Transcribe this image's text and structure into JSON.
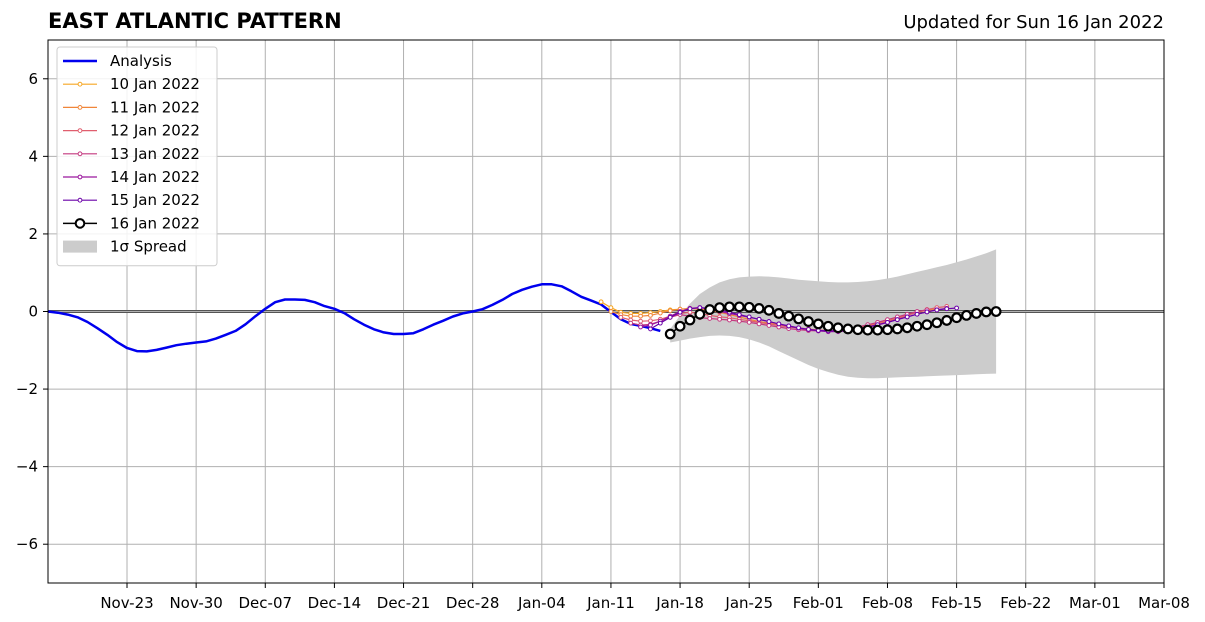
{
  "chart_data": {
    "type": "line",
    "title": "EAST ATLANTIC PATTERN",
    "subtitle": "Updated for Sun 16 Jan 2022",
    "xlabel": "",
    "ylabel": "",
    "xlim": [
      "2021-11-15",
      "2022-03-08"
    ],
    "ylim": [
      -7,
      7
    ],
    "grid": true,
    "legend_position": "top-left",
    "x_ticks": [
      "2021-11-23",
      "2021-11-30",
      "2021-12-07",
      "2021-12-14",
      "2021-12-21",
      "2021-12-28",
      "2022-01-04",
      "2022-01-11",
      "2022-01-18",
      "2022-01-25",
      "2022-02-01",
      "2022-02-08",
      "2022-02-15",
      "2022-02-22",
      "2022-03-01",
      "2022-03-08"
    ],
    "x_tick_labels": [
      "Nov-23",
      "Nov-30",
      "Dec-07",
      "Dec-14",
      "Dec-21",
      "Dec-28",
      "Jan-04",
      "Jan-11",
      "Jan-18",
      "Jan-25",
      "Feb-01",
      "Feb-08",
      "Feb-15",
      "Feb-22",
      "Mar-01",
      "Mar-08"
    ],
    "y_ticks": [
      -6,
      -4,
      -2,
      0,
      2,
      4,
      6
    ],
    "y_tick_labels": [
      "−6",
      "−4",
      "−2",
      "0",
      "2",
      "4",
      "6"
    ],
    "analysis": {
      "name": "Analysis",
      "color": "#0000ee",
      "points": [
        [
          "2021-11-15",
          0.0
        ],
        [
          "2021-11-16",
          -0.03
        ],
        [
          "2021-11-17",
          -0.08
        ],
        [
          "2021-11-18",
          -0.15
        ],
        [
          "2021-11-19",
          -0.27
        ],
        [
          "2021-11-20",
          -0.43
        ],
        [
          "2021-11-21",
          -0.6
        ],
        [
          "2021-11-22",
          -0.79
        ],
        [
          "2021-11-23",
          -0.94
        ],
        [
          "2021-11-24",
          -1.02
        ],
        [
          "2021-11-25",
          -1.03
        ],
        [
          "2021-11-26",
          -0.99
        ],
        [
          "2021-11-27",
          -0.93
        ],
        [
          "2021-11-28",
          -0.87
        ],
        [
          "2021-11-29",
          -0.83
        ],
        [
          "2021-11-30",
          -0.8
        ],
        [
          "2021-12-01",
          -0.77
        ],
        [
          "2021-12-02",
          -0.7
        ],
        [
          "2021-12-03",
          -0.6
        ],
        [
          "2021-12-04",
          -0.5
        ],
        [
          "2021-12-05",
          -0.33
        ],
        [
          "2021-12-06",
          -0.12
        ],
        [
          "2021-12-07",
          0.07
        ],
        [
          "2021-12-08",
          0.24
        ],
        [
          "2021-12-09",
          0.31
        ],
        [
          "2021-12-10",
          0.31
        ],
        [
          "2021-12-11",
          0.3
        ],
        [
          "2021-12-12",
          0.24
        ],
        [
          "2021-12-13",
          0.14
        ],
        [
          "2021-12-14",
          0.07
        ],
        [
          "2021-12-15",
          -0.04
        ],
        [
          "2021-12-16",
          -0.2
        ],
        [
          "2021-12-17",
          -0.34
        ],
        [
          "2021-12-18",
          -0.46
        ],
        [
          "2021-12-19",
          -0.54
        ],
        [
          "2021-12-20",
          -0.58
        ],
        [
          "2021-12-21",
          -0.58
        ],
        [
          "2021-12-22",
          -0.56
        ],
        [
          "2021-12-23",
          -0.46
        ],
        [
          "2021-12-24",
          -0.34
        ],
        [
          "2021-12-25",
          -0.24
        ],
        [
          "2021-12-26",
          -0.13
        ],
        [
          "2021-12-27",
          -0.05
        ],
        [
          "2021-12-28",
          0.0
        ],
        [
          "2021-12-29",
          0.06
        ],
        [
          "2021-12-30",
          0.17
        ],
        [
          "2021-12-31",
          0.3
        ],
        [
          "2022-01-01",
          0.45
        ],
        [
          "2022-01-02",
          0.56
        ],
        [
          "2022-01-03",
          0.64
        ],
        [
          "2022-01-04",
          0.7
        ],
        [
          "2022-01-05",
          0.7
        ],
        [
          "2022-01-06",
          0.65
        ],
        [
          "2022-01-07",
          0.52
        ],
        [
          "2022-01-08",
          0.38
        ],
        [
          "2022-01-09",
          0.28
        ],
        [
          "2022-01-10",
          0.18
        ],
        [
          "2022-01-11",
          -0.01
        ],
        [
          "2022-01-12",
          -0.2
        ],
        [
          "2022-01-13",
          -0.32
        ],
        [
          "2022-01-14",
          -0.37
        ],
        [
          "2022-01-15",
          -0.43
        ],
        [
          "2022-01-16",
          -0.5
        ]
      ]
    },
    "forecast_series": [
      {
        "name": "10 Jan 2022",
        "color": "#f6a623",
        "start": "2022-01-10",
        "values": [
          0.25,
          0.1,
          -0.02,
          -0.05,
          -0.05,
          -0.03,
          0.0,
          0.04,
          0.06
        ]
      },
      {
        "name": "11 Jan 2022",
        "color": "#f0863a",
        "start": "2022-01-11",
        "values": [
          0.0,
          -0.08,
          -0.12,
          -0.12,
          -0.1,
          -0.04,
          0.02,
          0.06,
          0.08,
          0.06,
          0.03,
          -0.02,
          -0.08,
          -0.14,
          -0.2,
          -0.26,
          -0.3,
          -0.34,
          -0.38,
          -0.42,
          -0.45,
          -0.48,
          -0.5,
          -0.5,
          -0.48,
          -0.43,
          -0.36,
          -0.29,
          -0.22,
          -0.15,
          -0.08,
          -0.02,
          0.03,
          0.06
        ]
      },
      {
        "name": "12 Jan 2022",
        "color": "#e05e6e",
        "start": "2022-01-12",
        "values": [
          -0.15,
          -0.22,
          -0.25,
          -0.24,
          -0.2,
          -0.12,
          -0.05,
          -0.02,
          -0.05,
          -0.1,
          -0.14,
          -0.16,
          -0.2,
          -0.24,
          -0.28,
          -0.32,
          -0.36,
          -0.4,
          -0.43,
          -0.46,
          -0.48,
          -0.5,
          -0.5,
          -0.48,
          -0.44,
          -0.38,
          -0.32,
          -0.25,
          -0.18,
          -0.1,
          -0.02,
          0.05,
          0.1,
          0.13
        ]
      },
      {
        "name": "13 Jan 2022",
        "color": "#c4387f",
        "start": "2022-01-13",
        "values": [
          -0.3,
          -0.35,
          -0.33,
          -0.25,
          -0.15,
          -0.08,
          -0.12,
          -0.16,
          -0.18,
          -0.2,
          -0.22,
          -0.25,
          -0.28,
          -0.32,
          -0.36,
          -0.4,
          -0.44,
          -0.47,
          -0.49,
          -0.5,
          -0.5,
          -0.48,
          -0.45,
          -0.4,
          -0.34,
          -0.28,
          -0.21,
          -0.14,
          -0.07,
          0.0,
          0.04
        ]
      },
      {
        "name": "14 Jan 2022",
        "color": "#9b179e",
        "start": "2022-01-14",
        "values": [
          -0.4,
          -0.35,
          -0.25,
          -0.12,
          0.0,
          0.08,
          0.1,
          0.06,
          0.0,
          -0.05,
          -0.1,
          -0.15,
          -0.2,
          -0.26,
          -0.32,
          -0.38,
          -0.43,
          -0.47,
          -0.5,
          -0.52,
          -0.52,
          -0.5,
          -0.46,
          -0.41,
          -0.35,
          -0.28,
          -0.21,
          -0.14,
          -0.07,
          -0.01,
          0.04,
          0.08
        ]
      },
      {
        "name": "15 Jan 2022",
        "color": "#6a00a8",
        "start": "2022-01-15",
        "values": [
          -0.45,
          -0.3,
          -0.15,
          -0.02,
          0.07,
          0.1,
          0.08,
          0.04,
          -0.02,
          -0.08,
          -0.14,
          -0.2,
          -0.26,
          -0.32,
          -0.37,
          -0.42,
          -0.46,
          -0.49,
          -0.5,
          -0.5,
          -0.48,
          -0.45,
          -0.4,
          -0.34,
          -0.28,
          -0.21,
          -0.14,
          -0.07,
          -0.01,
          0.04,
          0.07,
          0.09
        ]
      },
      {
        "name": "16 Jan 2022",
        "color": "#000000",
        "start": "2022-01-17",
        "values": [
          -0.58,
          -0.38,
          -0.22,
          -0.07,
          0.05,
          0.1,
          0.12,
          0.12,
          0.11,
          0.08,
          0.03,
          -0.05,
          -0.12,
          -0.19,
          -0.26,
          -0.32,
          -0.38,
          -0.42,
          -0.45,
          -0.47,
          -0.48,
          -0.48,
          -0.47,
          -0.45,
          -0.42,
          -0.38,
          -0.34,
          -0.29,
          -0.23,
          -0.16,
          -0.1,
          -0.05,
          -0.01,
          0.0
        ]
      }
    ],
    "spread": {
      "name": "1σ Spread",
      "color": "#cccccc",
      "start": "2022-01-17",
      "upper": [
        -0.45,
        -0.1,
        0.2,
        0.45,
        0.62,
        0.75,
        0.83,
        0.88,
        0.9,
        0.91,
        0.9,
        0.88,
        0.85,
        0.82,
        0.8,
        0.78,
        0.76,
        0.75,
        0.75,
        0.76,
        0.78,
        0.81,
        0.85,
        0.9,
        0.96,
        1.02,
        1.08,
        1.14,
        1.2,
        1.27,
        1.34,
        1.42,
        1.5,
        1.6
      ],
      "lower": [
        -0.8,
        -0.75,
        -0.7,
        -0.66,
        -0.63,
        -0.62,
        -0.63,
        -0.66,
        -0.72,
        -0.8,
        -0.9,
        -1.02,
        -1.14,
        -1.26,
        -1.38,
        -1.48,
        -1.56,
        -1.63,
        -1.68,
        -1.71,
        -1.72,
        -1.72,
        -1.71,
        -1.7,
        -1.69,
        -1.68,
        -1.67,
        -1.66,
        -1.65,
        -1.64,
        -1.63,
        -1.62,
        -1.61,
        -1.6
      ]
    }
  }
}
